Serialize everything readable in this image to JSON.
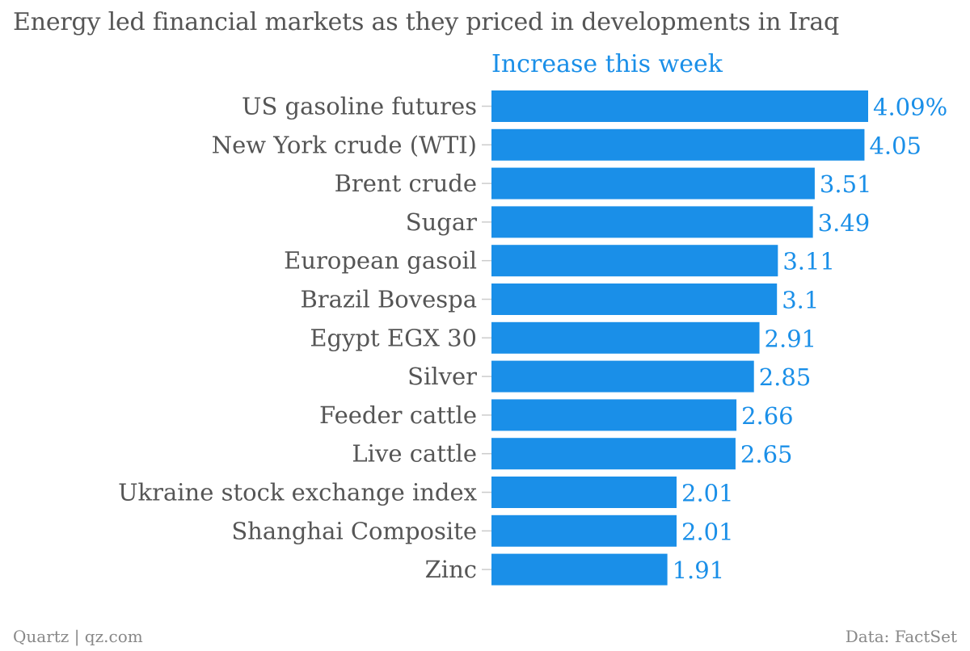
{
  "chart_data": {
    "type": "bar",
    "orientation": "horizontal",
    "title": "Energy led financial markets as they priced in developments in Iraq",
    "series": [
      {
        "name": "Increase this week",
        "values": [
          4.09,
          4.05,
          3.51,
          3.49,
          3.11,
          3.1,
          2.91,
          2.85,
          2.66,
          2.65,
          2.01,
          2.01,
          1.91
        ],
        "value_labels": [
          "4.09%",
          "4.05",
          "3.51",
          "3.49",
          "3.11",
          "3.1",
          "2.91",
          "2.85",
          "2.66",
          "2.65",
          "2.01",
          "2.01",
          "1.91"
        ]
      }
    ],
    "categories": [
      "US gasoline futures",
      "New York crude (WTI)",
      "Brent crude",
      "Sugar",
      "European gasoil",
      "Brazil Bovespa",
      "Egypt EGX 30",
      "Silver",
      "Feeder cattle",
      "Live cattle",
      "Ukraine stock exchange index",
      "Shanghai Composite",
      "Zinc"
    ],
    "xlim": [
      0,
      4.09
    ],
    "grid": false,
    "bar_color": "#1a8fe8",
    "label_color": "#555555",
    "value_label_color": "#1a8fe8"
  },
  "footer": {
    "source_left": "Quartz | qz.com",
    "source_right": "Data: FactSet"
  }
}
